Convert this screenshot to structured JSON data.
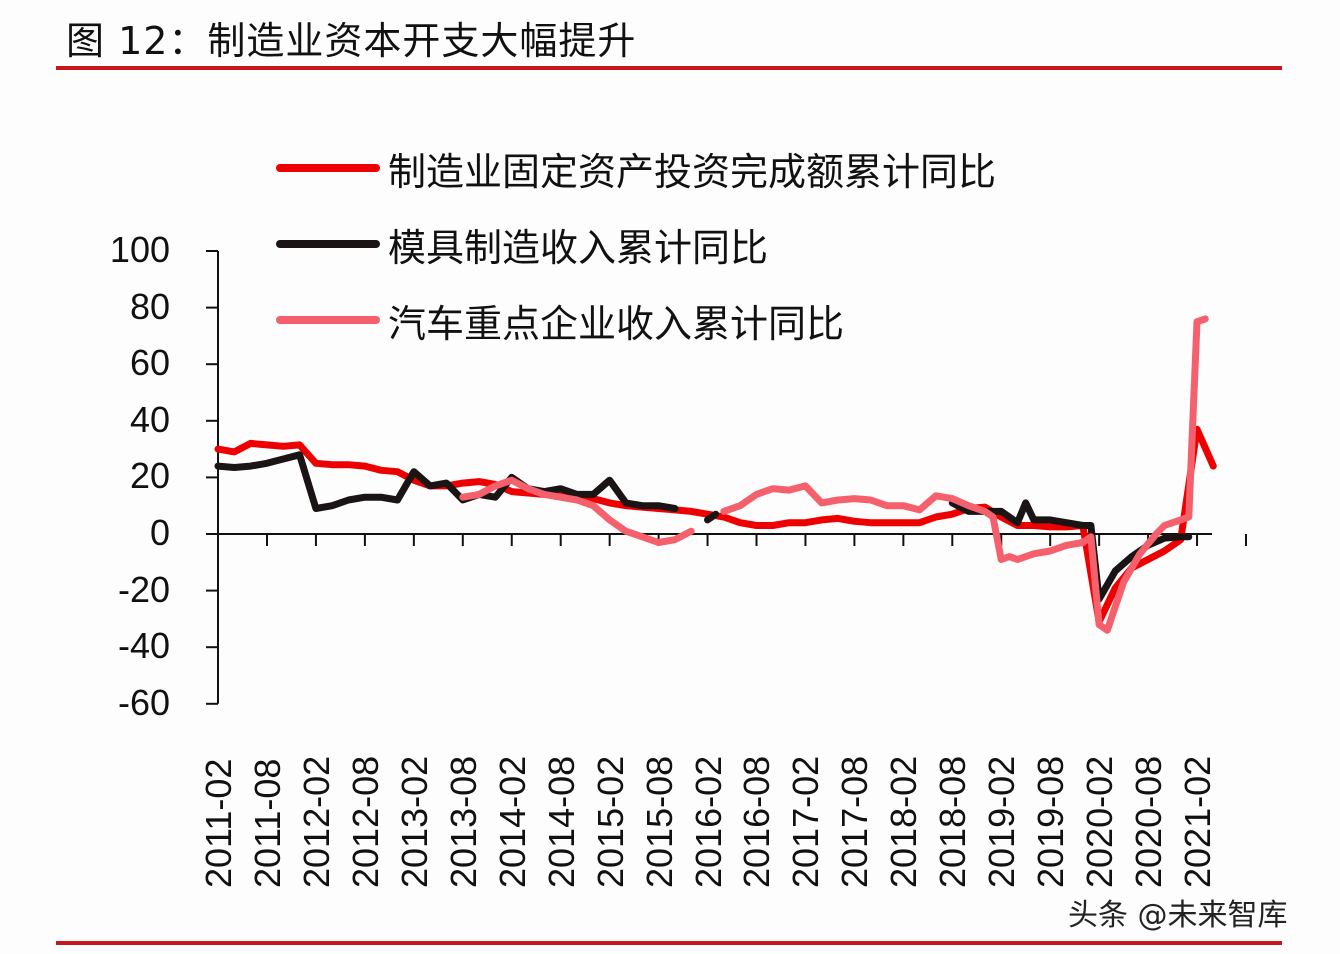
{
  "title": "图 12：制造业资本开支大幅提升",
  "watermark": "头条 @未来智库",
  "colors": {
    "rule": "#c8161d",
    "series_mfg_fai": "#ee0000",
    "series_mold": "#1a1414",
    "series_auto": "#f4606c"
  },
  "legend": [
    {
      "label": "制造业固定资产投资完成额累计同比",
      "color": "#ee0000"
    },
    {
      "label": "模具制造收入累计同比",
      "color": "#1a1414"
    },
    {
      "label": "汽车重点企业收入累计同比",
      "color": "#f4606c"
    }
  ],
  "axes": {
    "y_ticks": [
      "100",
      "80",
      "60",
      "40",
      "20",
      "0",
      "-20",
      "-40",
      "-60"
    ],
    "x_ticks": [
      "2011-02",
      "2011-08",
      "2012-02",
      "2012-08",
      "2013-02",
      "2013-08",
      "2014-02",
      "2014-08",
      "2015-02",
      "2015-08",
      "2016-02",
      "2016-08",
      "2017-02",
      "2017-08",
      "2018-02",
      "2018-08",
      "2019-02",
      "2019-08",
      "2020-02",
      "2020-08",
      "2021-02"
    ]
  },
  "chart_data": {
    "type": "line",
    "title": "图 12：制造业资本开支大幅提升",
    "xlabel": "",
    "ylabel": "",
    "ylim": [
      -60,
      100
    ],
    "yticks": [
      100,
      80,
      60,
      40,
      20,
      0,
      -20,
      -40,
      -60
    ],
    "x_tick_labels": [
      "2011-02",
      "2011-08",
      "2012-02",
      "2012-08",
      "2013-02",
      "2013-08",
      "2014-02",
      "2014-08",
      "2015-02",
      "2015-08",
      "2016-02",
      "2016-08",
      "2017-02",
      "2017-08",
      "2018-02",
      "2018-08",
      "2019-02",
      "2019-08",
      "2020-02",
      "2020-08",
      "2021-02"
    ],
    "grid": false,
    "legend_position": "top-left inside",
    "series": [
      {
        "name": "制造业固定资产投资完成额累计同比",
        "color": "#ee0000",
        "points": [
          [
            "2011-02",
            30
          ],
          [
            "2011-04",
            29
          ],
          [
            "2011-06",
            32
          ],
          [
            "2011-08",
            31.5
          ],
          [
            "2011-10",
            31
          ],
          [
            "2011-12",
            31.5
          ],
          [
            "2012-02",
            25
          ],
          [
            "2012-04",
            24.5
          ],
          [
            "2012-06",
            24.5
          ],
          [
            "2012-08",
            24
          ],
          [
            "2012-10",
            22.5
          ],
          [
            "2012-12",
            22
          ],
          [
            "2013-02",
            19
          ],
          [
            "2013-04",
            17
          ],
          [
            "2013-06",
            17
          ],
          [
            "2013-08",
            18
          ],
          [
            "2013-10",
            18.5
          ],
          [
            "2013-12",
            17.5
          ],
          [
            "2014-02",
            15
          ],
          [
            "2014-04",
            14.5
          ],
          [
            "2014-06",
            14
          ],
          [
            "2014-08",
            13.5
          ],
          [
            "2014-10",
            13
          ],
          [
            "2014-12",
            12.5
          ],
          [
            "2015-02",
            11
          ],
          [
            "2015-04",
            10
          ],
          [
            "2015-06",
            9.5
          ],
          [
            "2015-08",
            9
          ],
          [
            "2015-10",
            8.5
          ],
          [
            "2015-12",
            8
          ],
          [
            "2016-02",
            7
          ],
          [
            "2016-04",
            6
          ],
          [
            "2016-06",
            4
          ],
          [
            "2016-08",
            3
          ],
          [
            "2016-10",
            3
          ],
          [
            "2016-12",
            4
          ],
          [
            "2017-02",
            4
          ],
          [
            "2017-04",
            5
          ],
          [
            "2017-06",
            5.5
          ],
          [
            "2017-08",
            4.5
          ],
          [
            "2017-10",
            4
          ],
          [
            "2017-12",
            4
          ],
          [
            "2018-02",
            4
          ],
          [
            "2018-04",
            4
          ],
          [
            "2018-06",
            6
          ],
          [
            "2018-08",
            7
          ],
          [
            "2018-10",
            9
          ],
          [
            "2018-12",
            9.5
          ],
          [
            "2019-02",
            6
          ],
          [
            "2019-04",
            3
          ],
          [
            "2019-06",
            3
          ],
          [
            "2019-08",
            2.5
          ],
          [
            "2019-10",
            2.5
          ],
          [
            "2019-12",
            3
          ],
          [
            "2020-02",
            -31
          ],
          [
            "2020-04",
            -19
          ],
          [
            "2020-06",
            -12
          ],
          [
            "2020-08",
            -9
          ],
          [
            "2020-10",
            -6
          ],
          [
            "2020-12",
            -2
          ],
          [
            "2021-02",
            37
          ],
          [
            "2021-04",
            24
          ]
        ]
      },
      {
        "name": "模具制造收入累计同比",
        "color": "#1a1414",
        "points": [
          [
            "2011-02",
            24
          ],
          [
            "2011-04",
            23.5
          ],
          [
            "2011-06",
            24
          ],
          [
            "2011-08",
            25
          ],
          [
            "2011-10",
            26.5
          ],
          [
            "2011-12",
            28
          ],
          [
            "2012-02",
            9
          ],
          [
            "2012-04",
            10
          ],
          [
            "2012-06",
            12
          ],
          [
            "2012-08",
            13
          ],
          [
            "2012-10",
            13
          ],
          [
            "2012-12",
            12
          ],
          [
            "2013-02",
            22
          ],
          [
            "2013-04",
            17
          ],
          [
            "2013-06",
            18
          ],
          [
            "2013-08",
            12
          ],
          [
            "2013-10",
            14
          ],
          [
            "2013-12",
            13
          ],
          [
            "2014-02",
            20
          ],
          [
            "2014-04",
            16
          ],
          [
            "2014-06",
            15
          ],
          [
            "2014-08",
            16
          ],
          [
            "2014-10",
            14
          ],
          [
            "2014-12",
            14
          ],
          [
            "2015-02",
            19
          ],
          [
            "2015-04",
            11
          ],
          [
            "2015-06",
            10
          ],
          [
            "2015-08",
            10
          ],
          [
            "2015-10",
            9
          ],
          [
            "2016-02",
            5
          ],
          [
            "2016-03",
            7
          ],
          [
            "2018-08",
            11
          ],
          [
            "2018-10",
            8
          ],
          [
            "2018-12",
            8
          ],
          [
            "2019-02",
            8
          ],
          [
            "2019-04",
            4
          ],
          [
            "2019-05",
            11
          ],
          [
            "2019-06",
            5
          ],
          [
            "2019-08",
            5
          ],
          [
            "2019-10",
            4
          ],
          [
            "2019-12",
            3
          ],
          [
            "2020-01",
            3
          ],
          [
            "2020-02",
            -23
          ],
          [
            "2020-04",
            -13
          ],
          [
            "2020-06",
            -8
          ],
          [
            "2020-08",
            -4
          ],
          [
            "2020-10",
            -1.5
          ],
          [
            "2020-12",
            -1
          ],
          [
            "2021-01",
            -1
          ]
        ]
      },
      {
        "name": "汽车重点企业收入累计同比",
        "color": "#f4606c",
        "points": [
          [
            "2013-08",
            13
          ],
          [
            "2013-10",
            14
          ],
          [
            "2013-12",
            17
          ],
          [
            "2014-02",
            19
          ],
          [
            "2014-04",
            16
          ],
          [
            "2014-06",
            14
          ],
          [
            "2014-08",
            13
          ],
          [
            "2014-10",
            12
          ],
          [
            "2014-12",
            10
          ],
          [
            "2015-02",
            5
          ],
          [
            "2015-04",
            1
          ],
          [
            "2015-06",
            -1
          ],
          [
            "2015-08",
            -3
          ],
          [
            "2015-10",
            -2
          ],
          [
            "2015-12",
            1
          ],
          [
            "2016-04",
            8
          ],
          [
            "2016-06",
            10
          ],
          [
            "2016-08",
            14
          ],
          [
            "2016-10",
            16
          ],
          [
            "2016-12",
            15.5
          ],
          [
            "2017-02",
            17
          ],
          [
            "2017-04",
            11
          ],
          [
            "2017-06",
            12
          ],
          [
            "2017-08",
            12.5
          ],
          [
            "2017-10",
            12
          ],
          [
            "2017-12",
            10
          ],
          [
            "2018-02",
            10
          ],
          [
            "2018-04",
            8.5
          ],
          [
            "2018-06",
            13.5
          ],
          [
            "2018-08",
            12.5
          ],
          [
            "2018-10",
            10
          ],
          [
            "2018-12",
            8
          ],
          [
            "2019-01",
            6
          ],
          [
            "2019-02",
            -9
          ],
          [
            "2019-03",
            -8
          ],
          [
            "2019-04",
            -9
          ],
          [
            "2019-06",
            -7
          ],
          [
            "2019-08",
            -6
          ],
          [
            "2019-10",
            -4
          ],
          [
            "2019-12",
            -3
          ],
          [
            "2020-01",
            -1
          ],
          [
            "2020-02",
            -32
          ],
          [
            "2020-03",
            -34
          ],
          [
            "2020-05",
            -17
          ],
          [
            "2020-07",
            -7
          ],
          [
            "2020-09",
            0
          ],
          [
            "2020-10",
            3
          ],
          [
            "2020-12",
            5
          ],
          [
            "2021-01",
            6
          ],
          [
            "2021-02",
            75
          ],
          [
            "2021-03",
            76
          ]
        ]
      }
    ]
  }
}
